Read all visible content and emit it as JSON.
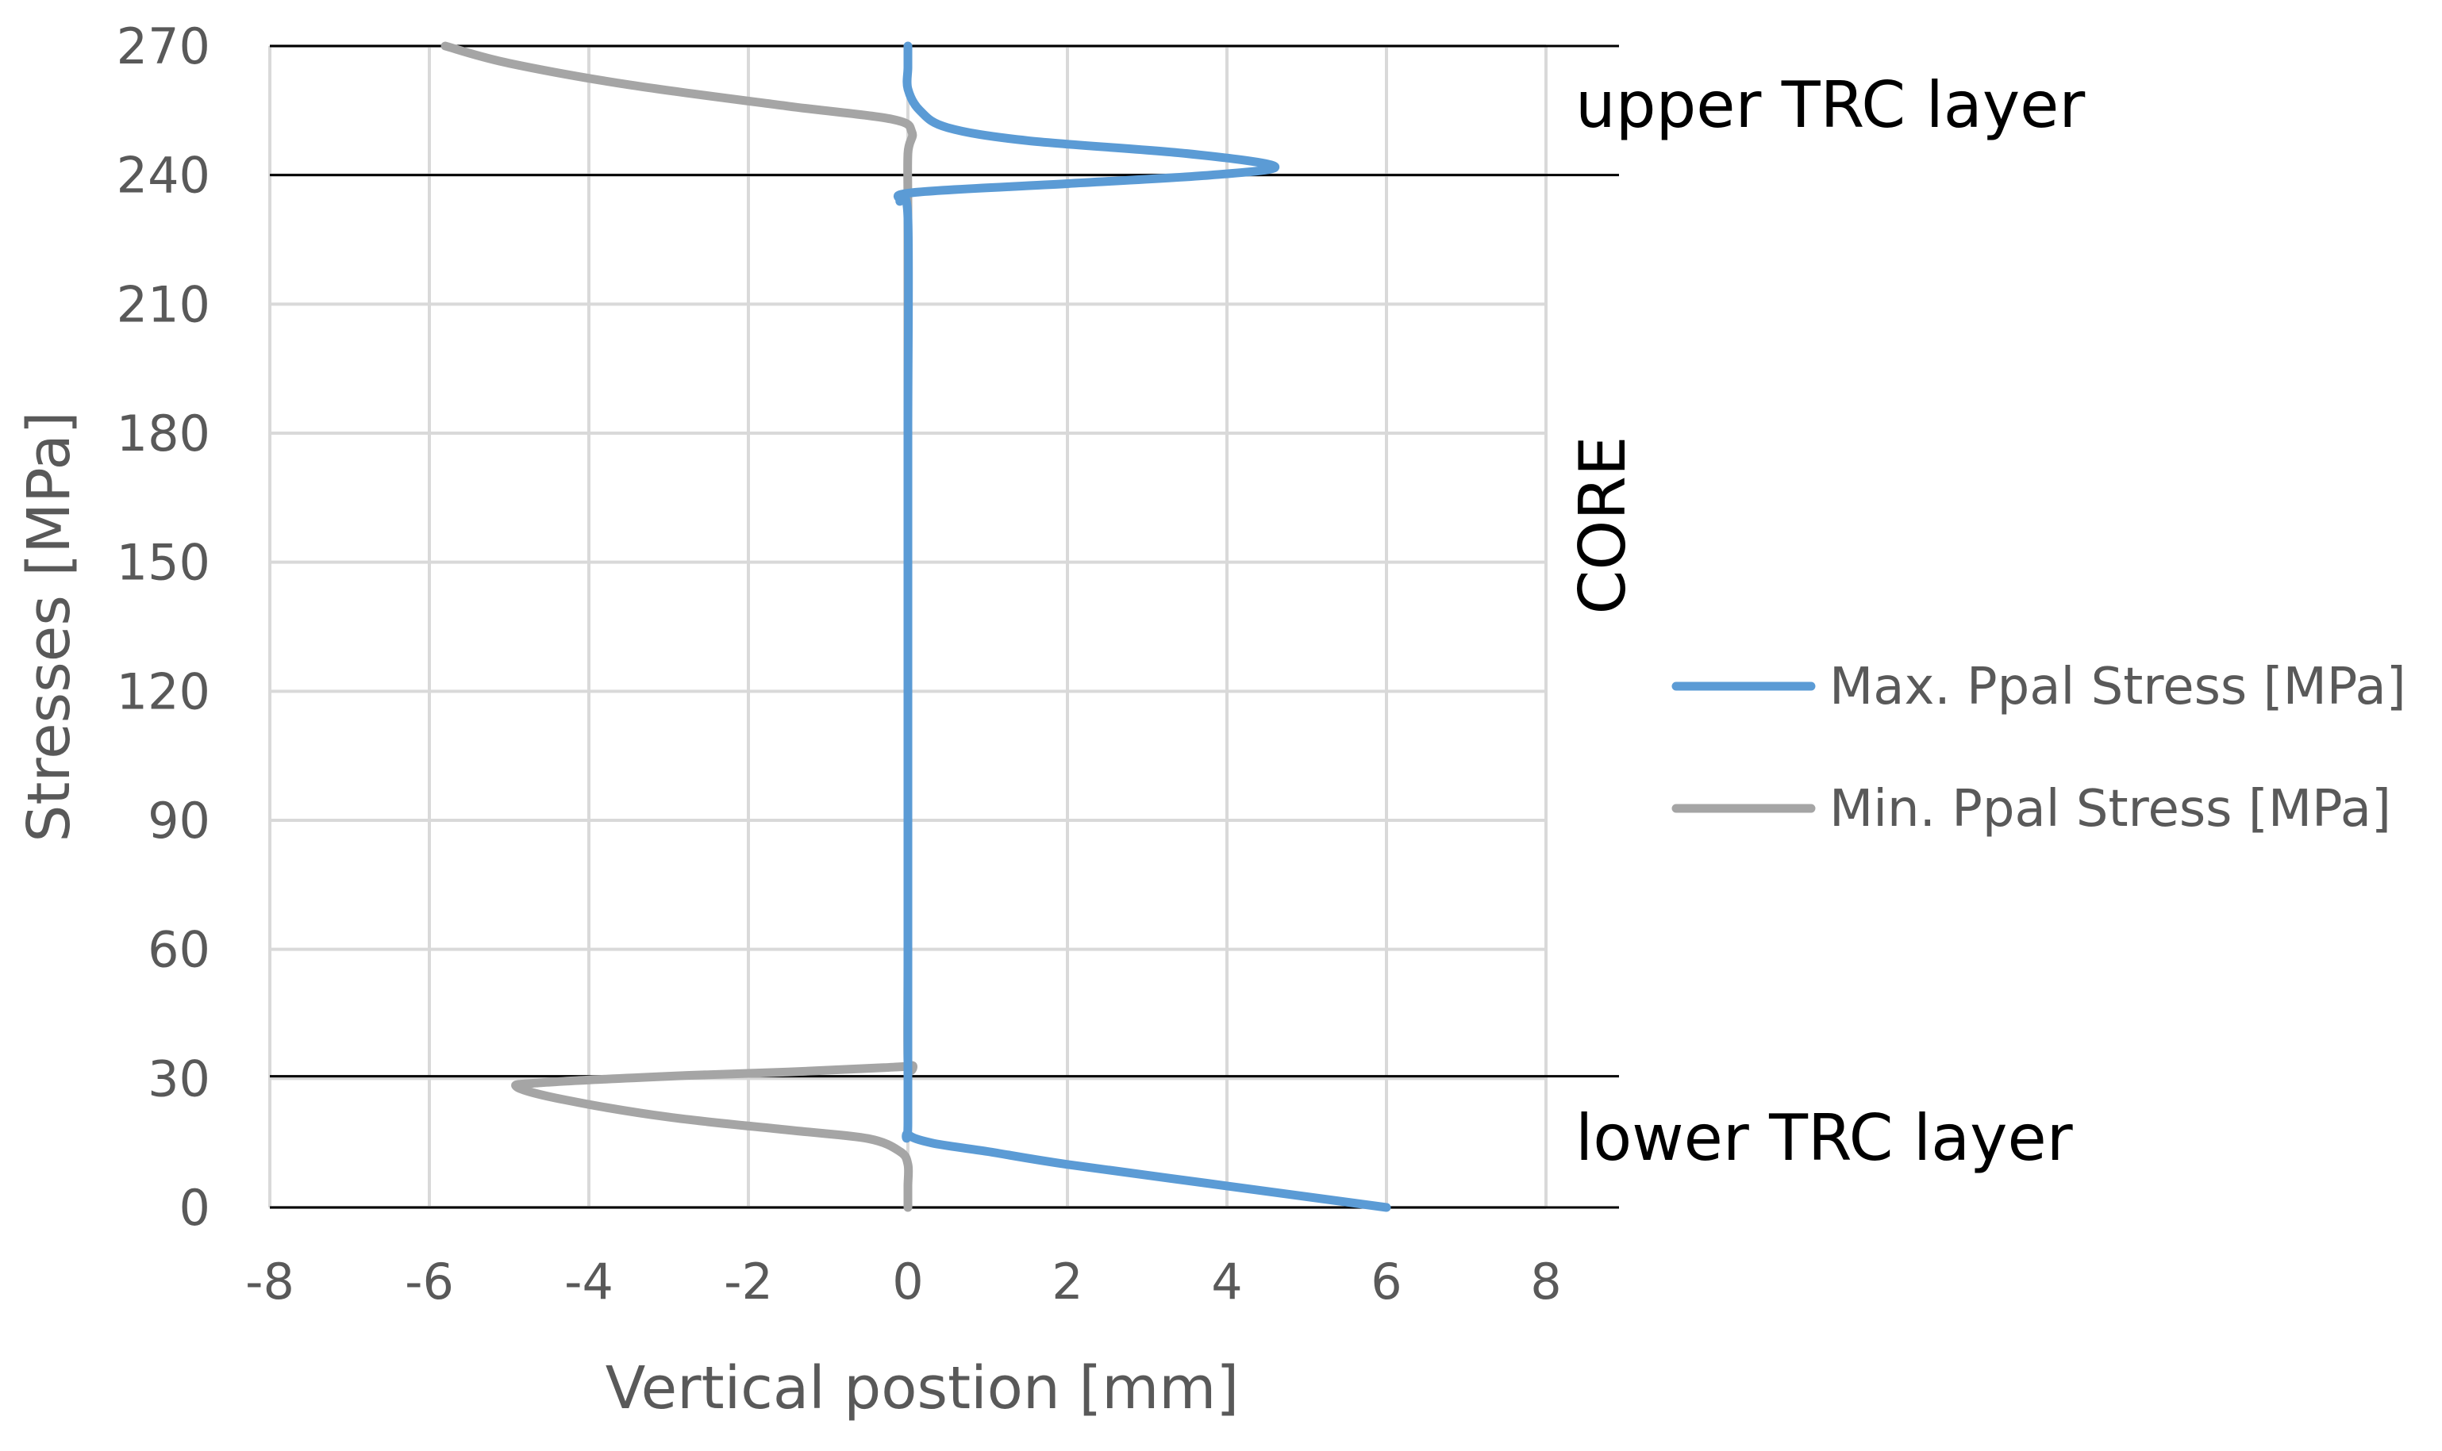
{
  "chart_data": {
    "type": "line",
    "title": "",
    "xlabel": "Vertical postion [mm]",
    "ylabel": "Stresses [MPa]",
    "xlim": [
      -8,
      8
    ],
    "ylim": [
      0,
      270
    ],
    "xgrid_max": 8,
    "xticks": [
      -8,
      -6,
      -4,
      -2,
      0,
      2,
      4,
      6,
      8
    ],
    "yticks": [
      0,
      30,
      60,
      90,
      120,
      150,
      180,
      210,
      240,
      270
    ],
    "grid": true,
    "legend_position": "right",
    "boundaries": [
      0,
      30.5,
      240,
      270
    ],
    "region_labels": {
      "upper": "upper TRC layer",
      "core": "CORE",
      "lower": "lower TRC layer"
    },
    "series": [
      {
        "name": "Max. Ppal Stress [MPa]",
        "color": "#5b9bd5",
        "points": [
          [
            6.0,
            0
          ],
          [
            4.0,
            5
          ],
          [
            2.0,
            10
          ],
          [
            1.0,
            13
          ],
          [
            0.3,
            15
          ],
          [
            0.0,
            17
          ],
          [
            0.0,
            20
          ],
          [
            0.0,
            60
          ],
          [
            0.0,
            120
          ],
          [
            0.0,
            180
          ],
          [
            0.0,
            230
          ],
          [
            -0.1,
            234
          ],
          [
            0.1,
            236
          ],
          [
            2.0,
            238
          ],
          [
            3.8,
            240
          ],
          [
            4.6,
            242
          ],
          [
            3.5,
            245
          ],
          [
            1.5,
            248
          ],
          [
            0.5,
            251
          ],
          [
            0.15,
            255
          ],
          [
            0.0,
            260
          ],
          [
            0.0,
            265
          ],
          [
            0.0,
            270
          ]
        ]
      },
      {
        "name": "Min. Ppal Stress [MPa]",
        "color": "#a5a5a5",
        "points": [
          [
            0.0,
            0
          ],
          [
            0.0,
            5
          ],
          [
            0.0,
            10
          ],
          [
            -0.1,
            13
          ],
          [
            -0.5,
            16
          ],
          [
            -1.5,
            18
          ],
          [
            -3.0,
            21
          ],
          [
            -4.3,
            25
          ],
          [
            -4.9,
            28
          ],
          [
            -4.6,
            29
          ],
          [
            -3.0,
            30.5
          ],
          [
            -1.5,
            31.5
          ],
          [
            -0.3,
            32.5
          ],
          [
            0.05,
            33
          ],
          [
            0.0,
            34
          ],
          [
            0.0,
            60
          ],
          [
            0.0,
            120
          ],
          [
            0.0,
            180
          ],
          [
            0.0,
            230
          ],
          [
            0.0,
            245
          ],
          [
            0.05,
            250
          ],
          [
            -0.2,
            253
          ],
          [
            -1.5,
            256
          ],
          [
            -3.5,
            261
          ],
          [
            -5.0,
            266
          ],
          [
            -5.8,
            270
          ]
        ]
      }
    ]
  }
}
